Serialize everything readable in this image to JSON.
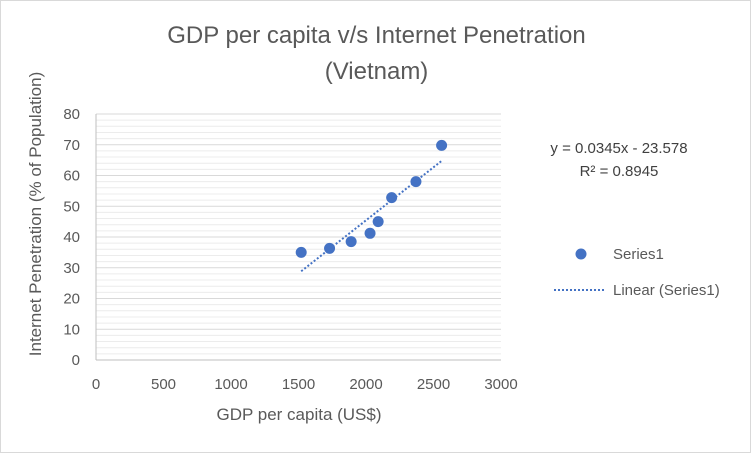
{
  "chart_data": {
    "type": "scatter",
    "title_lines": [
      "GDP per capita v/s Internet Penetration",
      "(Vietnam)"
    ],
    "xlabel": "GDP per capita (US$)",
    "ylabel": "Internet Penetration (% of Population)",
    "xlim": [
      0,
      3000
    ],
    "ylim": [
      0,
      80
    ],
    "x_ticks": [
      "0",
      "500",
      "1000",
      "1500",
      "2000",
      "2500",
      "3000"
    ],
    "y_ticks": [
      "0",
      "10",
      "20",
      "30",
      "40",
      "50",
      "60",
      "70",
      "80"
    ],
    "grid": "horizontal minor gridlines",
    "series": [
      {
        "name": "Series1",
        "color": "#4472c4",
        "points": [
          {
            "x": 1520,
            "y": 35
          },
          {
            "x": 1730,
            "y": 36.3
          },
          {
            "x": 1890,
            "y": 38.5
          },
          {
            "x": 2030,
            "y": 41.2
          },
          {
            "x": 2090,
            "y": 45
          },
          {
            "x": 2190,
            "y": 52.8
          },
          {
            "x": 2370,
            "y": 58
          },
          {
            "x": 2560,
            "y": 69.8
          }
        ]
      }
    ],
    "trendline": {
      "name": "Linear (Series1)",
      "type": "linear",
      "slope": 0.0345,
      "intercept": -23.578,
      "x_range": [
        1520,
        2560
      ],
      "equation_text": "y = 0.0345x - 23.578",
      "r2_text": "R² = 0.8945",
      "color": "#4472c4"
    },
    "legend": {
      "position": "right",
      "entries": [
        "Series1",
        "Linear (Series1)"
      ]
    }
  }
}
